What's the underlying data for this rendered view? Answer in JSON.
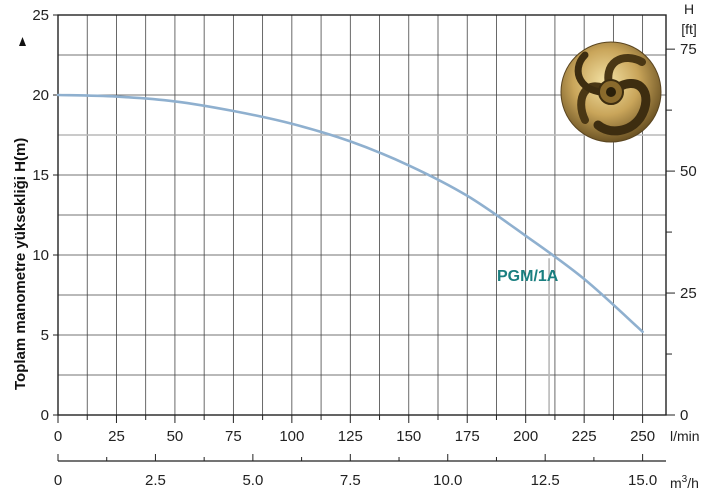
{
  "chart_data": {
    "type": "line",
    "ylabel": "Toplam manometre yüksekliği  H(m)",
    "y_right_label_top": "H",
    "y_right_label_unit": "[ft]",
    "x_unit": "l/min",
    "x2_unit": "m³/h",
    "xlim": [
      0,
      260
    ],
    "ylim": [
      0,
      25
    ],
    "y_right_lim": [
      0,
      82
    ],
    "x_ticks": [
      "0",
      "25",
      "50",
      "75",
      "100",
      "125",
      "150",
      "175",
      "200",
      "225",
      "250"
    ],
    "y_ticks": [
      "0",
      "5",
      "10",
      "15",
      "20",
      "25"
    ],
    "y_right_ticks": [
      "0",
      "25",
      "50",
      "75"
    ],
    "x2_ticks": [
      "0",
      "2.5",
      "5.0",
      "7.5",
      "10.0",
      "12.5",
      "15.0"
    ],
    "grid": true,
    "series": [
      {
        "name": "PGM/1A",
        "color": "#8fb0cf",
        "x": [
          0,
          25,
          50,
          75,
          100,
          125,
          150,
          175,
          200,
          225,
          250
        ],
        "y": [
          20.0,
          19.9,
          19.6,
          19.0,
          18.2,
          17.1,
          15.6,
          13.7,
          11.2,
          8.5,
          5.2
        ]
      }
    ],
    "reference_lines": {
      "horizontal_y": 17.5,
      "vertical_x": 210
    },
    "colors": {
      "grid": "#444444",
      "reference": "#b8b8b8",
      "label": "#1a7f80"
    }
  }
}
